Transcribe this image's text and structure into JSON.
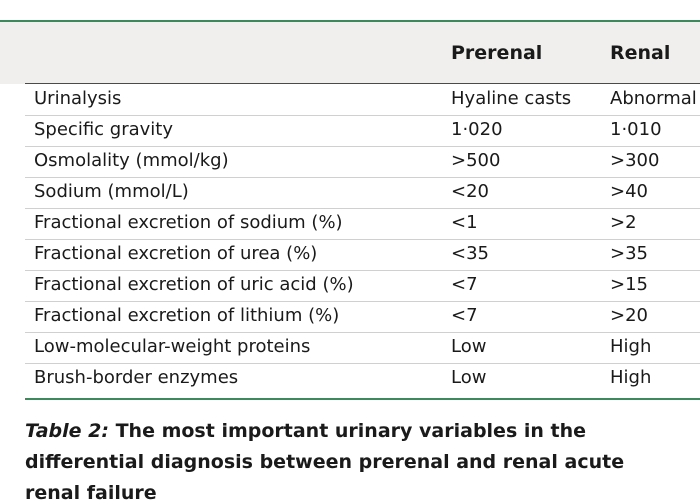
{
  "table": {
    "headers": [
      "",
      "Prerenal",
      "Renal"
    ],
    "rows": [
      [
        "Urinalysis",
        "Hyaline casts",
        "Abnormal"
      ],
      [
        "Specific gravity",
        "1·020",
        "1·010"
      ],
      [
        "Osmolality (mmol/kg)",
        ">500",
        ">300"
      ],
      [
        "Sodium (mmol/L)",
        "<20",
        ">40"
      ],
      [
        "Fractional excretion of sodium (%)",
        "<1",
        ">2"
      ],
      [
        "Fractional excretion of urea (%)",
        "<35",
        ">35"
      ],
      [
        "Fractional excretion of uric acid (%)",
        "<7",
        ">15"
      ],
      [
        "Fractional excretion of lithium (%)",
        "<7",
        ">20"
      ],
      [
        "Low-molecular-weight proteins",
        "Low",
        "High"
      ],
      [
        "Brush-border enzymes",
        "Low",
        "High"
      ]
    ]
  },
  "caption": {
    "label": "Table 2:",
    "text": "The most important urinary variables in the differential diagnosis between prerenal and renal acute renal failure"
  },
  "colors": {
    "rule": "#3c8a5c",
    "header_bg": "#f0efee"
  }
}
